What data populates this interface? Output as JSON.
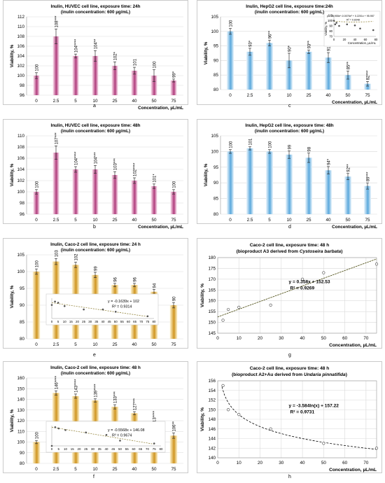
{
  "colors": {
    "pink_light": "#fde6f2",
    "pink_dark": "#b03c7c",
    "blue_light": "#eef7fd",
    "blue_dark": "#5aa8dc",
    "gold_light": "#fff6d6",
    "gold_dark": "#cf9520",
    "frame": "#bdbdbd",
    "grid": "#d9d9d9",
    "trend": "#8a7a2a"
  },
  "chart_data": [
    {
      "id": "a",
      "type": "bar",
      "panel_label": "a",
      "theme": "pink",
      "title": "Inulin, HUVEC cell line, exposure time: 24h",
      "subtitle": "(inulin concentration: 600 µg/mL)",
      "xlabel": "Concentration, µL/mL",
      "ylabel": "Viability, %",
      "categories": [
        "0",
        "2.5",
        "5",
        "10",
        "25",
        "40",
        "50",
        "75"
      ],
      "values": [
        100,
        108,
        104,
        104,
        102,
        101,
        100,
        99
      ],
      "errors": [
        0.6,
        1.5,
        0.4,
        1.1,
        0.8,
        0.7,
        1.2,
        0.3
      ],
      "labels": [
        "100",
        "108***",
        "104****",
        "104**",
        "102*",
        "101",
        "100",
        "99*"
      ],
      "ylim": [
        96,
        112
      ],
      "yticks": [
        96,
        98,
        100,
        102,
        104,
        106,
        108,
        110,
        112
      ]
    },
    {
      "id": "c",
      "type": "bar",
      "panel_label": "c",
      "theme": "blue",
      "title": "Inulin, HepG2 cell line, exposure time:24h",
      "subtitle": "(inulin concentration: 600 µg/mL)",
      "xlabel": "Concentration, µL/mL",
      "ylabel": "Viability, %",
      "categories": [
        "0",
        "2.5",
        "5",
        "10",
        "25",
        "40",
        "50",
        "75"
      ],
      "values": [
        100,
        93,
        96,
        90,
        93,
        91,
        85,
        82
      ],
      "errors": [
        1.0,
        1.2,
        1.0,
        2.5,
        0.6,
        1.7,
        1.4,
        0.8
      ],
      "labels": [
        "100",
        "93*",
        "96**",
        "90*",
        "93**",
        "91**",
        "85**",
        "82***"
      ],
      "ylim": [
        80,
        105
      ],
      "yticks": [
        80,
        85,
        90,
        95,
        100,
        105
      ],
      "inset": {
        "type": "scatter",
        "equation": "y = 38.955e^-0.0076x² + 0.2201x + 95.957",
        "r2": "R² = 0.8348",
        "ylabel": "Viability, %",
        "xlabel": "Concentration, µL/mL",
        "x": [
          0,
          2.5,
          5,
          10,
          25,
          40,
          50,
          75
        ],
        "y": [
          100,
          93,
          96,
          90,
          93,
          91,
          85,
          82
        ],
        "xlim": [
          0,
          80
        ],
        "ylim": [
          70,
          110
        ],
        "xticks": [
          0,
          20,
          40,
          60,
          80
        ],
        "yticks": [
          70,
          80,
          90,
          100,
          110
        ]
      }
    },
    {
      "id": "b",
      "type": "bar",
      "panel_label": "b",
      "theme": "pink",
      "title": "Inulin, HUVEC cell line, exposure time: 48h",
      "subtitle": "(inulin concentration: 600 µg/mL)",
      "xlabel": "Concentration, µL/mL",
      "ylabel": "Viability, %",
      "categories": [
        "0",
        "2.5",
        "5",
        "10",
        "25",
        "40",
        "50",
        "75"
      ],
      "values": [
        100,
        107,
        104,
        104,
        103,
        102,
        101,
        100
      ],
      "errors": [
        0.4,
        1.2,
        0.5,
        0.7,
        0.6,
        0.5,
        0.4,
        0.4
      ],
      "labels": [
        "100",
        "107***",
        "104****",
        "104***",
        "103***",
        "102****",
        "101*",
        "100"
      ],
      "ylim": [
        96,
        110
      ],
      "yticks": [
        96,
        98,
        100,
        102,
        104,
        106,
        108,
        110
      ]
    },
    {
      "id": "d",
      "type": "bar",
      "panel_label": "d",
      "theme": "blue",
      "title": "Inulin, HepG2 cell line, exposure time: 48h",
      "subtitle": "(inulin concentration: 600 µg/mL)",
      "xlabel": "Concentration, µL/mL",
      "ylabel": "Viability, %",
      "categories": [
        "0",
        "2.5",
        "5",
        "10",
        "25",
        "40",
        "50",
        "75"
      ],
      "values": [
        100,
        101,
        100,
        99,
        98,
        94,
        92,
        89
      ],
      "errors": [
        0.6,
        0.5,
        0.6,
        1.2,
        1.5,
        1.2,
        1.0,
        1.0
      ],
      "labels": [
        "100",
        "101",
        "100",
        "99",
        "98",
        "94*",
        "92**",
        "89***"
      ],
      "ylim": [
        80,
        105
      ],
      "yticks": [
        80,
        85,
        90,
        95,
        100,
        105
      ]
    },
    {
      "id": "e",
      "type": "bar",
      "panel_label": "e",
      "theme": "gold",
      "title": "Inulin, Caco-2 cell line, exposure time: 24 h",
      "subtitle": "(inulin concentration:  600 µg/mL)",
      "xlabel": "",
      "ylabel": "Viability, %",
      "categories": [
        "0",
        "2.5",
        "5",
        "10",
        "25",
        "40",
        "50",
        "75"
      ],
      "values": [
        100,
        103,
        102,
        99,
        96,
        96,
        94,
        90
      ],
      "errors": [
        0.8,
        0.9,
        0.8,
        0.8,
        0.5,
        0.5,
        0.7,
        0.8
      ],
      "labels": [
        "100",
        "103",
        "102",
        "99",
        "96",
        "96",
        "94",
        "90"
      ],
      "ylim": [
        80,
        105
      ],
      "yticks": [
        80,
        85,
        90,
        95,
        100,
        105
      ],
      "inset": {
        "type": "scatter",
        "equation": "y = -0.1639x + 102",
        "r2": "R² = 0.9314",
        "x": [
          0,
          2.5,
          5,
          10,
          25,
          40,
          50,
          75
        ],
        "y": [
          100,
          103,
          102,
          99,
          96,
          96,
          94,
          90
        ],
        "xlim": [
          0,
          80
        ],
        "xticks": [
          0,
          5,
          10,
          15,
          20,
          25,
          30,
          35,
          40,
          45,
          50,
          55,
          60,
          65,
          70,
          75,
          80
        ],
        "ylim": [
          88,
          106
        ]
      }
    },
    {
      "id": "g",
      "type": "scatter",
      "panel_label": "g",
      "title": "Caco-2 cell line,  exposure time:  48 h",
      "subtitle_prefix": "(bioproduct A3 derived from ",
      "subtitle_italic": "Cystoseira barbata",
      "subtitle_suffix": ")",
      "xlabel": "Concentration, µL/mL",
      "ylabel": "Viability, %",
      "x": [
        2.5,
        5,
        10,
        25,
        40,
        50,
        75
      ],
      "y": [
        151,
        156,
        157,
        158,
        170,
        173,
        177
      ],
      "fit": {
        "kind": "linear",
        "slope": 0.358,
        "intercept": 152.53
      },
      "equation": "y = 0.358x + 152.53",
      "r2": "R² = 0.9269",
      "xlim": [
        0,
        75
      ],
      "ylim": [
        145,
        180
      ],
      "xticks": [
        0,
        10,
        20,
        30,
        40,
        50,
        60,
        70
      ],
      "yticks": [
        145,
        150,
        155,
        160,
        165,
        170,
        175,
        180
      ]
    },
    {
      "id": "f",
      "type": "bar",
      "panel_label": "f",
      "theme": "gold",
      "title": "Inulin, Caco-2 cell line, exposure time: 48 h",
      "subtitle": "(inulin concentration:  600 µg/mL)",
      "xlabel": "",
      "ylabel": "Viability, %",
      "categories": [
        "0",
        "2.5",
        "5",
        "10",
        "25",
        "40",
        "50",
        "75"
      ],
      "values": [
        100,
        146,
        143,
        139,
        133,
        127,
        113,
        106
      ],
      "errors": [
        1.5,
        2.0,
        2.0,
        1.5,
        2.0,
        1.5,
        2.5,
        2.5
      ],
      "labels": [
        "100",
        "146****",
        "143****",
        "139****",
        "133***",
        "127***",
        "113****",
        "106**"
      ],
      "ylim": [
        80,
        160
      ],
      "yticks": [
        80,
        90,
        100,
        110,
        120,
        130,
        140,
        150,
        160
      ],
      "inset": {
        "type": "scatter",
        "equation": "y = -0.5568x + 146.08",
        "r2": "R² = 0.9674",
        "x": [
          0,
          2.5,
          5,
          10,
          25,
          40,
          50,
          75
        ],
        "y": [
          100,
          146,
          143,
          139,
          133,
          127,
          113,
          106
        ],
        "xlim": [
          0,
          80
        ],
        "xticks": [
          0,
          5,
          10,
          15,
          20,
          25,
          30,
          35,
          40,
          45,
          50,
          55,
          60,
          65,
          70,
          75,
          80
        ],
        "ylim": [
          100,
          150
        ]
      }
    },
    {
      "id": "h",
      "type": "scatter",
      "panel_label": "h",
      "title": "Caco-2 cell line,  exposure time:  48 h",
      "subtitle_prefix": "(bioproduct A2+Au derived from ",
      "subtitle_italic": "Undaria pinnatifida",
      "subtitle_suffix": ")",
      "xlabel": "Concentration, µL/mL",
      "ylabel": "Viability, %",
      "x": [
        2.5,
        5,
        10,
        25,
        50,
        75
      ],
      "y": [
        155,
        150,
        149,
        146,
        143,
        142
      ],
      "fit": {
        "kind": "log",
        "a": -3.584,
        "b": 157.22
      },
      "equation": "y = -3.584ln(x) + 157.22",
      "r2": "R² = 0.9731",
      "xlim": [
        0,
        75
      ],
      "ylim": [
        140,
        156
      ],
      "xticks": [
        0,
        10,
        20,
        30,
        40,
        50,
        60,
        70
      ],
      "yticks": [
        140,
        142,
        144,
        146,
        148,
        150,
        152,
        154,
        156
      ]
    }
  ]
}
